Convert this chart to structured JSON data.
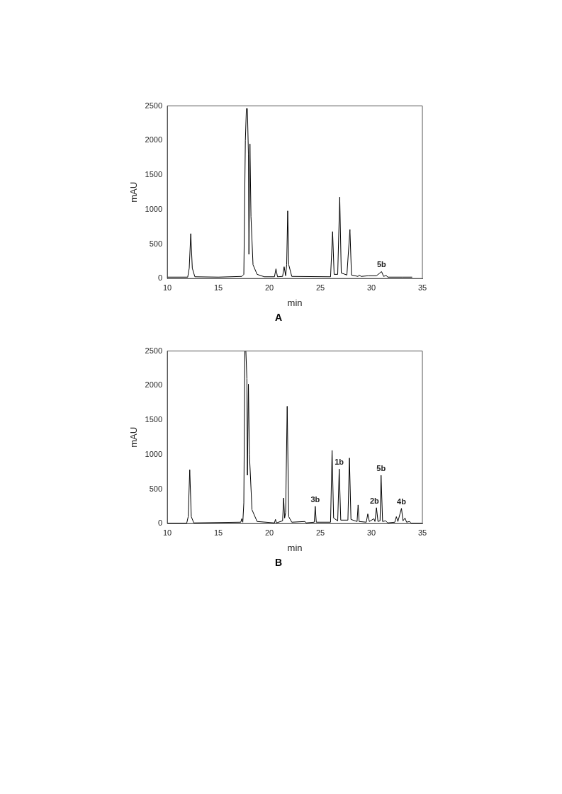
{
  "chart_data": [
    {
      "type": "line",
      "title": "A",
      "xlabel": "min",
      "ylabel": "mAU",
      "xlim": [
        10,
        35
      ],
      "xticks": [
        10,
        15,
        20,
        25,
        30,
        35
      ],
      "ylim": [
        0,
        2500
      ],
      "yticks": [
        0,
        500,
        1000,
        1500,
        2000,
        2500
      ],
      "grid": false,
      "legend": false,
      "annotations": [
        {
          "text": "5b",
          "x": 31,
          "y": 100
        }
      ],
      "series": [
        {
          "color": "#000000",
          "x": [
            10,
            12,
            12.15,
            12.3,
            12.45,
            12.7,
            15,
            17.3,
            17.5,
            17.65,
            17.75,
            17.85,
            17.95,
            18,
            18.1,
            18.2,
            18.4,
            18.8,
            19.5,
            20.5,
            20.65,
            20.8,
            21.3,
            21.45,
            21.6,
            21.7,
            21.8,
            21.9,
            22.2,
            26,
            26.2,
            26.35,
            26.7,
            26.9,
            27.05,
            27.6,
            27.9,
            28.05,
            28.7,
            28.8,
            29,
            29.7,
            30.5,
            31,
            31.2,
            31.45,
            31.6,
            33,
            34
          ],
          "values": [
            20,
            20,
            150,
            650,
            150,
            25,
            20,
            30,
            60,
            2000,
            2460,
            2460,
            1800,
            350,
            1950,
            900,
            200,
            60,
            25,
            25,
            140,
            25,
            30,
            170,
            40,
            200,
            980,
            200,
            30,
            25,
            680,
            60,
            60,
            1180,
            80,
            50,
            710,
            50,
            30,
            50,
            30,
            40,
            40,
            100,
            30,
            45,
            20,
            20,
            20
          ]
        }
      ]
    },
    {
      "type": "line",
      "title": "B",
      "xlabel": "min",
      "ylabel": "mAU",
      "xlim": [
        10,
        35
      ],
      "xticks": [
        10,
        15,
        20,
        25,
        30,
        35
      ],
      "ylim": [
        0,
        2500
      ],
      "yticks": [
        0,
        500,
        1000,
        1500,
        2000,
        2500
      ],
      "grid": false,
      "legend": false,
      "annotations": [
        {
          "text": "3b",
          "x": 24.5,
          "y": 250
        },
        {
          "text": "1b",
          "x": 26.85,
          "y": 790
        },
        {
          "text": "2b",
          "x": 30.3,
          "y": 230
        },
        {
          "text": "5b",
          "x": 30.95,
          "y": 700
        },
        {
          "text": "4b",
          "x": 32.95,
          "y": 220
        }
      ],
      "series": [
        {
          "color": "#000000",
          "x": [
            10,
            11.9,
            12.05,
            12.2,
            12.35,
            12.6,
            17.2,
            17.3,
            17.4,
            17.5,
            17.6,
            17.7,
            17.8,
            17.85,
            17.95,
            18.05,
            18.3,
            18.8,
            20.5,
            20.6,
            20.7,
            21.3,
            21.4,
            21.5,
            21.6,
            21.75,
            21.9,
            22.2,
            23.5,
            23.6,
            24.4,
            24.5,
            24.6,
            26,
            26.15,
            26.3,
            26.7,
            26.85,
            27,
            27.7,
            27.85,
            28,
            28.4,
            28.6,
            28.7,
            28.8,
            29.5,
            29.65,
            29.8,
            30.25,
            30.35,
            30.5,
            30.65,
            30.85,
            30.95,
            31.1,
            31.4,
            31.6,
            32.3,
            32.45,
            32.6,
            32.95,
            33.1,
            33.3,
            33.45,
            33.75,
            33.9,
            35
          ],
          "values": [
            5,
            5,
            100,
            780,
            100,
            10,
            20,
            70,
            20,
            300,
            2500,
            2500,
            2100,
            700,
            2020,
            1000,
            200,
            30,
            10,
            60,
            10,
            40,
            370,
            80,
            160,
            1700,
            100,
            20,
            30,
            10,
            20,
            250,
            20,
            20,
            1060,
            80,
            40,
            790,
            50,
            50,
            950,
            60,
            40,
            30,
            270,
            30,
            20,
            140,
            30,
            70,
            30,
            230,
            30,
            40,
            700,
            30,
            40,
            10,
            20,
            100,
            30,
            220,
            40,
            80,
            20,
            30,
            5,
            5
          ]
        }
      ]
    }
  ]
}
